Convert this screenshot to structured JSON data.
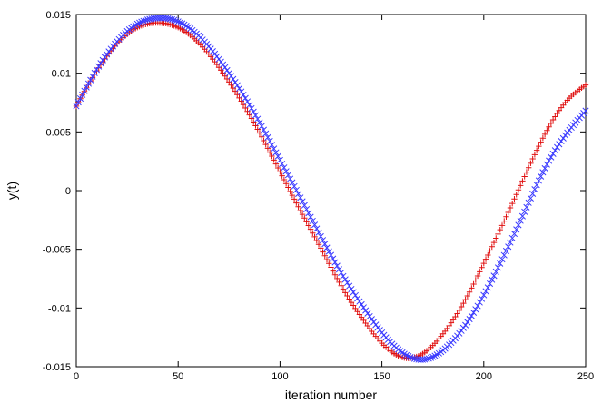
{
  "chart_data": {
    "type": "scatter",
    "xlabel": "iteration number",
    "ylabel": "y(t)",
    "xlim": [
      0,
      250
    ],
    "ylim": [
      -0.015,
      0.015
    ],
    "x_ticks": [
      {
        "value": 0,
        "label": "0"
      },
      {
        "value": 50,
        "label": "50"
      },
      {
        "value": 100,
        "label": "100"
      },
      {
        "value": 150,
        "label": "150"
      },
      {
        "value": 200,
        "label": "200"
      },
      {
        "value": 250,
        "label": "250"
      }
    ],
    "y_ticks": [
      {
        "value": 0.015,
        "label": "0.015"
      },
      {
        "value": 0.01,
        "label": "0.01"
      },
      {
        "value": 0.005,
        "label": "0.005"
      },
      {
        "value": 0,
        "label": "0"
      },
      {
        "value": -0.005,
        "label": "-0.005"
      },
      {
        "value": -0.01,
        "label": "-0.01"
      },
      {
        "value": -0.015,
        "label": "-0.015"
      }
    ],
    "grid": false,
    "series": [
      {
        "marker": "plus",
        "color": "#e01010",
        "x": [
          0,
          10,
          20,
          30,
          40,
          50,
          60,
          70,
          80,
          90,
          100,
          110,
          120,
          130,
          140,
          150,
          160,
          170,
          180,
          190,
          200,
          210,
          220,
          230,
          240,
          250
        ],
        "y": [
          0.0072,
          0.0102,
          0.0125,
          0.0139,
          0.0143,
          0.0139,
          0.0126,
          0.0105,
          0.0079,
          0.0049,
          0.0016,
          -0.0017,
          -0.0049,
          -0.0081,
          -0.0108,
          -0.013,
          -0.0142,
          -0.0139,
          -0.0122,
          -0.0096,
          -0.0062,
          -0.0026,
          0.0012,
          0.0048,
          0.0075,
          0.009
        ]
      },
      {
        "marker": "x",
        "color": "#3a3aff",
        "x": [
          0,
          10,
          20,
          30,
          40,
          50,
          60,
          70,
          80,
          90,
          100,
          110,
          120,
          130,
          140,
          150,
          160,
          170,
          180,
          190,
          200,
          210,
          220,
          230,
          240,
          250
        ],
        "y": [
          0.0072,
          0.0103,
          0.0127,
          0.0142,
          0.0147,
          0.0144,
          0.0132,
          0.0112,
          0.0087,
          0.0058,
          0.0026,
          -0.0006,
          -0.0039,
          -0.007,
          -0.0097,
          -0.0121,
          -0.0138,
          -0.0144,
          -0.0136,
          -0.0117,
          -0.0089,
          -0.0055,
          -0.0018,
          0.0019,
          0.0047,
          0.0068
        ]
      }
    ]
  }
}
